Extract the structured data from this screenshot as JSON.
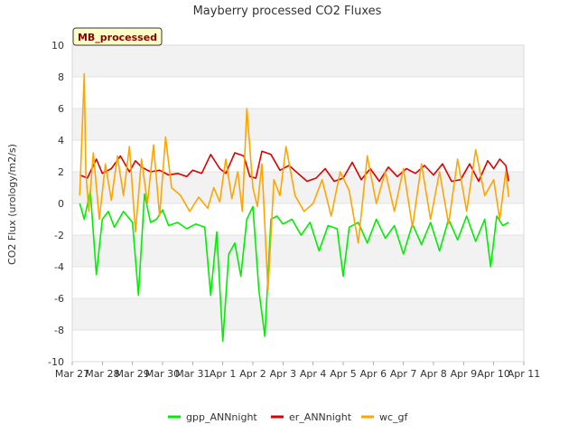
{
  "chart_data": {
    "type": "line",
    "title": "Mayberry processed CO2 Fluxes",
    "ylabel": "CO2 Flux (urology/m2/s)",
    "xlabel": "",
    "ylim": [
      -10,
      10
    ],
    "xlim": [
      0,
      15
    ],
    "yticks": [
      -10,
      -8,
      -6,
      -4,
      -2,
      0,
      2,
      4,
      6,
      8,
      10
    ],
    "xticks": [
      "Mar 27",
      "Mar 28",
      "Mar 29",
      "Mar 30",
      "Mar 31",
      "Apr 1",
      "Apr 2",
      "Apr 3",
      "Apr 4",
      "Apr 5",
      "Apr 6",
      "Apr 7",
      "Apr 8",
      "Apr 9",
      "Apr 10",
      "Apr 11"
    ],
    "annotation": "MB_processed",
    "legend_position": "bottom",
    "series": [
      {
        "name": "gpp_ANNnight",
        "color": "#00ee00",
        "x": [
          0.25,
          0.4,
          0.6,
          0.8,
          1.0,
          1.2,
          1.4,
          1.7,
          2.0,
          2.2,
          2.4,
          2.6,
          2.8,
          3.0,
          3.2,
          3.5,
          3.8,
          4.1,
          4.4,
          4.6,
          4.8,
          5.0,
          5.2,
          5.4,
          5.6,
          5.8,
          6.0,
          6.2,
          6.4,
          6.6,
          6.8,
          7.0,
          7.3,
          7.6,
          7.9,
          8.2,
          8.5,
          8.8,
          9.0,
          9.2,
          9.5,
          9.8,
          10.1,
          10.4,
          10.7,
          11.0,
          11.3,
          11.6,
          11.9,
          12.2,
          12.5,
          12.8,
          13.1,
          13.4,
          13.7,
          13.9,
          14.1,
          14.3,
          14.5
        ],
        "values": [
          0.0,
          -1.0,
          0.8,
          -4.5,
          -1.0,
          -0.5,
          -1.5,
          -0.5,
          -1.2,
          -5.8,
          0.6,
          -1.2,
          -1.0,
          -0.4,
          -1.4,
          -1.2,
          -1.6,
          -1.3,
          -1.5,
          -5.8,
          -1.8,
          -8.7,
          -3.2,
          -2.5,
          -4.6,
          -1.0,
          -0.2,
          -5.5,
          -8.4,
          -1.0,
          -0.8,
          -1.3,
          -1.0,
          -2.0,
          -1.2,
          -3.0,
          -1.4,
          -1.6,
          -4.6,
          -1.5,
          -1.2,
          -2.5,
          -1.0,
          -2.2,
          -1.4,
          -3.2,
          -1.3,
          -2.6,
          -1.2,
          -3.0,
          -1.0,
          -2.3,
          -0.8,
          -2.4,
          -1.0,
          -4.0,
          -0.8,
          -1.4,
          -1.2
        ]
      },
      {
        "name": "er_ANNnight",
        "color": "#dd0000",
        "x": [
          0.25,
          0.5,
          0.8,
          1.0,
          1.3,
          1.6,
          1.9,
          2.1,
          2.3,
          2.6,
          2.9,
          3.2,
          3.5,
          3.8,
          4.0,
          4.3,
          4.6,
          4.9,
          5.1,
          5.4,
          5.7,
          5.9,
          6.1,
          6.3,
          6.6,
          6.9,
          7.2,
          7.5,
          7.8,
          8.1,
          8.4,
          8.7,
          9.0,
          9.3,
          9.6,
          9.9,
          10.2,
          10.5,
          10.8,
          11.1,
          11.4,
          11.7,
          12.0,
          12.3,
          12.6,
          12.9,
          13.2,
          13.5,
          13.8,
          14.0,
          14.2,
          14.4,
          14.5
        ],
        "values": [
          1.8,
          1.6,
          2.8,
          1.9,
          2.2,
          3.0,
          2.0,
          2.7,
          2.3,
          2.0,
          2.1,
          1.8,
          1.9,
          1.7,
          2.1,
          1.9,
          3.1,
          2.2,
          1.9,
          3.2,
          3.0,
          1.7,
          1.6,
          3.3,
          3.1,
          2.1,
          2.4,
          1.9,
          1.4,
          1.6,
          2.2,
          1.4,
          1.6,
          2.6,
          1.5,
          2.2,
          1.4,
          2.3,
          1.7,
          2.2,
          1.9,
          2.4,
          1.8,
          2.5,
          1.4,
          1.5,
          2.5,
          1.4,
          2.7,
          2.2,
          2.8,
          2.4,
          1.4
        ]
      },
      {
        "name": "wc_gf",
        "color": "#ffa500",
        "x": [
          0.25,
          0.4,
          0.45,
          0.55,
          0.7,
          0.9,
          1.1,
          1.3,
          1.5,
          1.7,
          1.9,
          2.1,
          2.3,
          2.5,
          2.7,
          2.9,
          3.1,
          3.3,
          3.6,
          3.9,
          4.2,
          4.5,
          4.7,
          4.9,
          5.1,
          5.3,
          5.5,
          5.65,
          5.8,
          6.0,
          6.15,
          6.3,
          6.5,
          6.7,
          6.9,
          7.1,
          7.4,
          7.7,
          8.0,
          8.3,
          8.6,
          8.9,
          9.2,
          9.5,
          9.8,
          10.1,
          10.4,
          10.7,
          11.0,
          11.3,
          11.6,
          11.9,
          12.2,
          12.5,
          12.8,
          13.1,
          13.4,
          13.7,
          14.0,
          14.2,
          14.4,
          14.5
        ],
        "values": [
          0.5,
          8.2,
          2.0,
          -0.5,
          3.2,
          -1.0,
          2.5,
          0.2,
          3.0,
          0.5,
          3.6,
          -1.8,
          2.8,
          0.0,
          3.7,
          -0.8,
          4.2,
          1.0,
          0.5,
          -0.5,
          0.4,
          -0.3,
          1.0,
          0.1,
          2.8,
          0.3,
          2.0,
          -0.5,
          6.0,
          1.0,
          -0.2,
          2.5,
          -5.5,
          1.5,
          0.5,
          3.6,
          0.5,
          -0.5,
          0.0,
          1.5,
          -0.8,
          2.0,
          0.8,
          -2.5,
          3.0,
          0.0,
          2.0,
          -0.5,
          2.2,
          -1.5,
          2.5,
          -1.0,
          2.0,
          -1.3,
          2.8,
          -0.5,
          3.4,
          0.5,
          1.5,
          -1.0,
          2.0,
          0.4
        ]
      }
    ]
  }
}
